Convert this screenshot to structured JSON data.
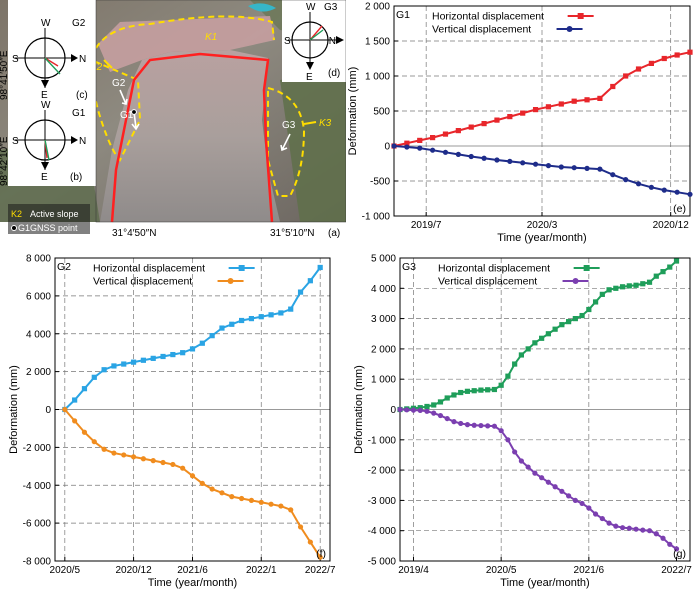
{
  "map_panel": {
    "panel_letter": "(a)",
    "lat_top_label": "98°41′50″E",
    "lat_bottom_label": "98°42′10″E",
    "lon_left_label": "31°4′50″N",
    "lon_right_label": "31°5′10″N",
    "legend": {
      "active_slope_tag": "K2",
      "active_slope_label": "Active slope",
      "gnss_tag": "G1",
      "gnss_label": "GNSS point"
    },
    "zone_labels": [
      "K1",
      "K2",
      "K3"
    ],
    "point_labels": [
      "G1",
      "G2",
      "G3"
    ],
    "compasses": [
      {
        "station": "G2",
        "panel": "(c)",
        "north": "N",
        "south": "S",
        "east": "E",
        "west": "W"
      },
      {
        "station": "G1",
        "panel": "(b)",
        "north": "N",
        "south": "S",
        "east": "E",
        "west": "W"
      },
      {
        "station": "G3",
        "panel": "(d)",
        "north": "N",
        "south": "S",
        "east": "E",
        "west": "W"
      }
    ],
    "colors": {
      "slope_boundary": "#ffdd00",
      "slide_boundary": "#ff2020",
      "arrow": "#ffffff"
    }
  },
  "chart_data": [
    {
      "type": "line",
      "station": "G1",
      "panel": "(e)",
      "xlabel": "Time (year/month)",
      "ylabel": "Deformation (mm)",
      "x_ticks": [
        "2019/7",
        "2020/3",
        "2020/12"
      ],
      "x_tick_positions": [
        2.5,
        11.5,
        21.5
      ],
      "x_range": [
        0,
        23
      ],
      "ylim": [
        -1000,
        2000
      ],
      "y_ticks": [
        -1000,
        -500,
        0,
        500,
        1000,
        1500,
        2000
      ],
      "grid": true,
      "legend_position": "top-left",
      "x": [
        0,
        1,
        2,
        3,
        4,
        5,
        6,
        7,
        8,
        9,
        10,
        11,
        12,
        13,
        14,
        15,
        16,
        17,
        18,
        19,
        20,
        21,
        22,
        23
      ],
      "series": [
        {
          "name": "Horizontal displacement",
          "color": "#e8262b",
          "marker": "square",
          "values": [
            0,
            40,
            80,
            120,
            170,
            220,
            270,
            320,
            370,
            420,
            470,
            520,
            560,
            600,
            640,
            660,
            680,
            850,
            1000,
            1100,
            1180,
            1250,
            1300,
            1340
          ]
        },
        {
          "name": "Vertical displacement",
          "color": "#1e2c8a",
          "marker": "circle",
          "values": [
            0,
            -15,
            -30,
            -60,
            -90,
            -120,
            -150,
            -175,
            -200,
            -220,
            -240,
            -260,
            -280,
            -300,
            -310,
            -320,
            -330,
            -410,
            -480,
            -540,
            -590,
            -630,
            -660,
            -690
          ]
        }
      ]
    },
    {
      "type": "line",
      "station": "G2",
      "panel": "(f)",
      "xlabel": "Time (year/month)",
      "ylabel": "Deformation (mm)",
      "x_ticks": [
        "2020/5",
        "2020/12",
        "2021/6",
        "2022/1",
        "2022/7"
      ],
      "x_tick_positions": [
        0,
        7,
        13,
        20,
        26
      ],
      "x_range": [
        -1,
        27
      ],
      "ylim": [
        -8000,
        8000
      ],
      "y_ticks": [
        -8000,
        -6000,
        -4000,
        -2000,
        0,
        2000,
        4000,
        6000,
        8000
      ],
      "grid": true,
      "legend_position": "top-left",
      "x": [
        0,
        1,
        2,
        3,
        4,
        5,
        6,
        7,
        8,
        9,
        10,
        11,
        12,
        13,
        14,
        15,
        16,
        17,
        18,
        19,
        20,
        21,
        22,
        23,
        24,
        25,
        26
      ],
      "series": [
        {
          "name": "Horizontal displacement",
          "color": "#2aa4e4",
          "marker": "square",
          "values": [
            0,
            500,
            1100,
            1700,
            2100,
            2300,
            2400,
            2500,
            2600,
            2700,
            2800,
            2900,
            3000,
            3200,
            3500,
            3900,
            4300,
            4500,
            4700,
            4800,
            4900,
            5000,
            5100,
            5300,
            6200,
            6800,
            7500
          ]
        },
        {
          "name": "Vertical displacement",
          "color": "#f08c1e",
          "marker": "circle",
          "values": [
            0,
            -600,
            -1200,
            -1700,
            -2100,
            -2300,
            -2400,
            -2500,
            -2600,
            -2700,
            -2800,
            -2900,
            -3100,
            -3500,
            -3900,
            -4200,
            -4400,
            -4600,
            -4700,
            -4800,
            -4900,
            -5000,
            -5100,
            -5300,
            -6200,
            -7000,
            -7800
          ]
        }
      ]
    },
    {
      "type": "line",
      "station": "G3",
      "panel": "(g)",
      "xlabel": "Time (year/month)",
      "ylabel": "Deformation (mm)",
      "x_ticks": [
        "2019/4",
        "2020/5",
        "2021/6",
        "2022/7"
      ],
      "x_tick_positions": [
        2,
        15,
        28,
        41
      ],
      "x_range": [
        0,
        43
      ],
      "ylim": [
        -5000,
        5000
      ],
      "y_ticks": [
        -5000,
        -4000,
        -3000,
        -2000,
        -1000,
        0,
        1000,
        2000,
        3000,
        4000,
        5000
      ],
      "grid": true,
      "legend_position": "top-left",
      "x": [
        0,
        1,
        2,
        3,
        4,
        5,
        6,
        7,
        8,
        9,
        10,
        11,
        12,
        13,
        14,
        15,
        16,
        17,
        18,
        19,
        20,
        21,
        22,
        23,
        24,
        25,
        26,
        27,
        28,
        29,
        30,
        31,
        32,
        33,
        34,
        35,
        36,
        37,
        38,
        39,
        40,
        41
      ],
      "series": [
        {
          "name": "Horizontal displacement",
          "color": "#1f9e5a",
          "marker": "square",
          "values": [
            0,
            20,
            40,
            60,
            100,
            150,
            250,
            380,
            480,
            560,
            600,
            620,
            640,
            650,
            660,
            800,
            1100,
            1500,
            1800,
            2000,
            2200,
            2350,
            2500,
            2650,
            2800,
            2900,
            3000,
            3100,
            3300,
            3550,
            3800,
            3950,
            4000,
            4050,
            4080,
            4100,
            4150,
            4200,
            4400,
            4550,
            4700,
            4900
          ]
        },
        {
          "name": "Vertical displacement",
          "color": "#7b3fb0",
          "marker": "circle",
          "values": [
            0,
            -10,
            -20,
            -30,
            -60,
            -120,
            -200,
            -300,
            -400,
            -460,
            -500,
            -520,
            -530,
            -540,
            -550,
            -700,
            -1000,
            -1400,
            -1700,
            -1900,
            -2100,
            -2250,
            -2400,
            -2550,
            -2700,
            -2850,
            -3000,
            -3100,
            -3250,
            -3450,
            -3600,
            -3750,
            -3850,
            -3900,
            -3920,
            -3950,
            -3980,
            -4000,
            -4100,
            -4250,
            -4450,
            -4600
          ]
        }
      ]
    }
  ]
}
